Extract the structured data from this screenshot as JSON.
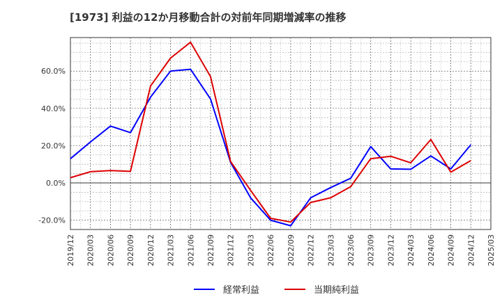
{
  "chart_data": {
    "type": "line",
    "title": "[1973]  利益の12か月移動合計の対前年同期増減率の推移",
    "xlabel": "",
    "ylabel": "",
    "ylim": [
      -25,
      78
    ],
    "yticks": [
      60,
      40,
      20,
      0,
      -20
    ],
    "ytick_labels": [
      "60.0%",
      "40.0%",
      "20.0%",
      "0.0%",
      "-20.0%"
    ],
    "categories": [
      "2019/12",
      "2020/03",
      "2020/06",
      "2020/09",
      "2020/12",
      "2021/03",
      "2021/06",
      "2021/09",
      "2021/12",
      "2022/03",
      "2022/06",
      "2022/09",
      "2022/12",
      "2023/03",
      "2023/06",
      "2023/09",
      "2023/12",
      "2024/03",
      "2024/06",
      "2024/09",
      "2024/12",
      "2025/03"
    ],
    "series": [
      {
        "name": "経常利益",
        "color": "#0000ff",
        "values": [
          13.0,
          22.0,
          30.5,
          27.0,
          46.0,
          60.0,
          61.0,
          45.0,
          11.0,
          -8.0,
          -20.0,
          -23.0,
          -8.0,
          -2.5,
          2.5,
          19.5,
          7.5,
          7.3,
          14.5,
          7.5,
          20.5,
          null
        ]
      },
      {
        "name": "当期純利益",
        "color": "#dd0000",
        "values": [
          2.8,
          6.0,
          6.6,
          6.2,
          52.0,
          67.0,
          75.5,
          57.0,
          11.5,
          -4.0,
          -19.0,
          -21.0,
          -10.5,
          -8.0,
          -2.0,
          13.0,
          14.3,
          10.8,
          23.3,
          5.8,
          12.0,
          null
        ]
      }
    ],
    "legend": "bottom",
    "grid": true
  }
}
